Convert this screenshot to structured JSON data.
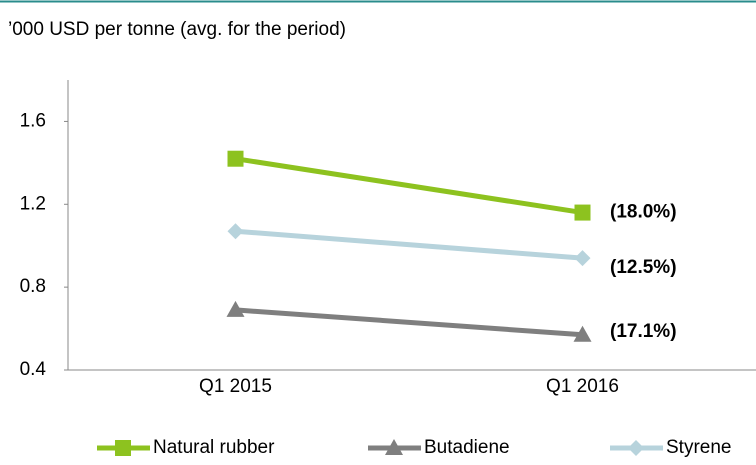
{
  "chart_data": {
    "type": "line",
    "title": "’000 USD per tonne (avg. for the period)",
    "categories": [
      "Q1 2015",
      "Q1 2016"
    ],
    "ylim": [
      0.4,
      1.8
    ],
    "yticks": [
      0.4,
      0.8,
      1.2,
      1.6
    ],
    "grid": false,
    "legend": "bottom",
    "series": [
      {
        "name": "Natural rubber",
        "color": "#8dc21f",
        "marker": "square",
        "values": [
          1.42,
          1.16
        ],
        "change_label": "(18.0%)"
      },
      {
        "name": "Butadiene",
        "color": "#7f7f7f",
        "marker": "triangle",
        "values": [
          0.69,
          0.57
        ],
        "change_label": "(17.1%)"
      },
      {
        "name": "Styrene",
        "color": "#b7d3dc",
        "marker": "diamond",
        "values": [
          1.07,
          0.94
        ],
        "change_label": "(12.5%)"
      }
    ]
  }
}
